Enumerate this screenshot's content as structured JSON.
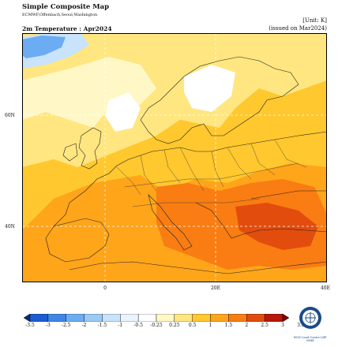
{
  "header": {
    "title": "Simple Composite Map",
    "subtitle": "ECMWF,Offenbach,Seoul,Washington",
    "variable_line": "2m Temperature : Apr2024",
    "unit": "[Unit: K]",
    "issued": "(issued on Mar2024)"
  },
  "axes": {
    "lat_ticks": [
      {
        "label": "60N",
        "lat": 60
      },
      {
        "label": "40N",
        "lat": 40
      }
    ],
    "lon_ticks": [
      {
        "label": "0",
        "lon": 0
      },
      {
        "label": "20E",
        "lon": 20
      },
      {
        "label": "40E",
        "lon": 40
      }
    ],
    "lon_range": [
      -15,
      40
    ],
    "lat_range": [
      30,
      73
    ]
  },
  "colorbar": {
    "labels": [
      "-3.5",
      "-3",
      "-2.5",
      "-2",
      "-1.5",
      "-1",
      "-0.5",
      "-0.25",
      "0.25",
      "0.5",
      "1",
      "1.5",
      "2",
      "2.5",
      "3",
      "3.5"
    ],
    "colors": [
      "#08306b",
      "#1f5bd0",
      "#3f86e6",
      "#6cacf2",
      "#9ccaf6",
      "#c8e3fb",
      "#e9f4fe",
      "#ffffff",
      "#fff8c6",
      "#ffe680",
      "#ffc82e",
      "#ffa51a",
      "#f97d12",
      "#e24d0e",
      "#b6180b",
      "#7a0707"
    ],
    "extend": "both"
  },
  "map_colors": {
    "land_border": "#222222",
    "grid_line": "#ffffff"
  },
  "logo": {
    "icon": "wmo-logo-icon",
    "caption": "WMO Lead Centre LRF-MME"
  }
}
